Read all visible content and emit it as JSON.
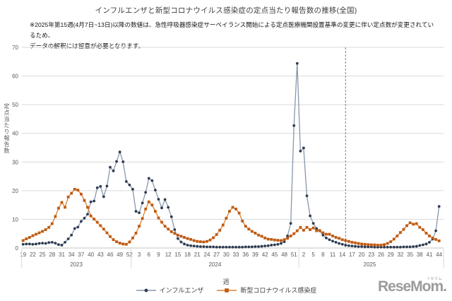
{
  "title": "インフルエンザと新型コロナウイルス感染症の定点当たり報告数の推移(全国)",
  "note": {
    "line1": "※2025年第15週(4月7日~13日)以降の数値は、急性呼吸器感染症サーベイランス開始による定点医療機関設置基準の変更に伴い定点数が変更されているため、",
    "line2": "データの解釈には留意が必要となります。"
  },
  "y_axis": {
    "label": "定点当たり報告数",
    "min": 0,
    "max": 70,
    "ticks": [
      0,
      10,
      20,
      30,
      40,
      50,
      60,
      70
    ]
  },
  "x_axis": {
    "title": "週",
    "label_every": 3,
    "years": [
      {
        "label": "2023",
        "start_week": 19,
        "num_weeks": 34
      },
      {
        "label": "2024",
        "start_week": 1,
        "num_weeks": 52
      },
      {
        "label": "2025",
        "start_week": 1,
        "num_weeks": 44
      }
    ]
  },
  "annotation": {
    "type": "dashed-vertical-line",
    "at_year": "2025",
    "at_week": 15,
    "week_index": 100
  },
  "legend": [
    {
      "label": "インフルエンザ",
      "marker": "circle",
      "line_color": "#8897AC",
      "marker_color": "#2E3B50"
    },
    {
      "label": "新型コロナウイルス感染症",
      "marker": "square",
      "line_color": "#E0802F",
      "marker_color": "#BE5A14"
    }
  ],
  "watermark": {
    "text": "ReseMom.",
    "ruby": "リセマム",
    "color": "#9b9b9b"
  },
  "chart_data": {
    "type": "line",
    "title": "インフルエンザと新型コロナウイルス感染症の定点当たり報告数の推移(全国)",
    "xlabel": "週",
    "ylabel": "定点当たり報告数",
    "ylim": [
      0,
      70
    ],
    "grid": true,
    "legend_position": "bottom",
    "x_weeks": [
      19,
      20,
      21,
      22,
      23,
      24,
      25,
      26,
      27,
      28,
      29,
      30,
      31,
      32,
      33,
      34,
      35,
      36,
      37,
      38,
      39,
      40,
      41,
      42,
      43,
      44,
      45,
      46,
      47,
      48,
      49,
      50,
      51,
      52,
      1,
      2,
      3,
      4,
      5,
      6,
      7,
      8,
      9,
      10,
      11,
      12,
      13,
      14,
      15,
      16,
      17,
      18,
      19,
      20,
      21,
      22,
      23,
      24,
      25,
      26,
      27,
      28,
      29,
      30,
      31,
      32,
      33,
      34,
      35,
      36,
      37,
      38,
      39,
      40,
      41,
      42,
      43,
      44,
      45,
      46,
      47,
      48,
      49,
      50,
      51,
      52,
      1,
      2,
      3,
      4,
      5,
      6,
      7,
      8,
      9,
      10,
      11,
      12,
      13,
      14,
      15,
      16,
      17,
      18,
      19,
      20,
      21,
      22,
      23,
      24,
      25,
      26,
      27,
      28,
      29,
      30,
      31,
      32,
      33,
      34,
      35,
      36,
      37,
      38,
      39,
      40,
      41,
      42,
      43,
      44
    ],
    "series": [
      {
        "name": "インフルエンザ",
        "values": [
          1.3,
          1.4,
          1.4,
          1.3,
          1.4,
          1.6,
          1.7,
          1.6,
          1.9,
          2.0,
          1.7,
          1.2,
          1.0,
          2.0,
          3.2,
          4.5,
          6.8,
          7.3,
          9.3,
          10.4,
          11.8,
          16.1,
          16.4,
          21.0,
          21.5,
          17.9,
          21.6,
          28.2,
          26.9,
          30.2,
          33.5,
          30.1,
          23.2,
          22.0,
          20.5,
          12.8,
          12.3,
          15.7,
          19.4,
          24.3,
          23.5,
          20.2,
          17.0,
          14.0,
          16.9,
          14.2,
          10.9,
          6.4,
          3.3,
          2.1,
          1.4,
          1.0,
          0.8,
          0.7,
          0.6,
          0.5,
          0.5,
          0.4,
          0.4,
          0.4,
          0.3,
          0.3,
          0.3,
          0.3,
          0.3,
          0.3,
          0.3,
          0.3,
          0.3,
          0.4,
          0.4,
          0.4,
          0.5,
          0.5,
          0.6,
          0.7,
          0.8,
          1.0,
          1.1,
          1.3,
          1.6,
          2.2,
          4.2,
          8.6,
          42.7,
          64.4,
          33.8,
          34.9,
          18.2,
          11.2,
          8.6,
          6.8,
          6.0,
          4.5,
          3.5,
          2.9,
          2.4,
          2.0,
          1.6,
          1.3,
          1.0,
          0.8,
          0.7,
          0.6,
          0.5,
          0.5,
          0.4,
          0.4,
          0.4,
          0.3,
          0.3,
          0.3,
          0.3,
          0.3,
          0.3,
          0.3,
          0.3,
          0.3,
          0.4,
          0.4,
          0.4,
          0.5,
          0.6,
          0.9,
          1.1,
          1.4,
          2.0,
          3.1,
          6.0,
          14.5
        ]
      },
      {
        "name": "新型コロナウイルス感染症",
        "values": [
          2.6,
          3.2,
          3.7,
          4.3,
          4.8,
          5.3,
          5.8,
          6.4,
          7.2,
          8.5,
          11.0,
          13.9,
          15.9,
          14.2,
          17.8,
          19.1,
          20.5,
          20.2,
          18.8,
          16.6,
          14.2,
          11.2,
          10.1,
          9.0,
          7.8,
          6.6,
          5.3,
          4.0,
          2.9,
          2.2,
          1.7,
          1.4,
          1.3,
          2.1,
          3.5,
          5.2,
          7.6,
          10.3,
          13.6,
          16.1,
          15.0,
          12.8,
          10.5,
          9.0,
          7.6,
          6.6,
          5.7,
          5.1,
          4.5,
          4.1,
          3.7,
          3.3,
          3.0,
          2.6,
          2.3,
          2.2,
          2.1,
          2.3,
          2.8,
          3.6,
          4.7,
          6.2,
          8.0,
          10.4,
          12.8,
          14.2,
          13.6,
          12.2,
          9.4,
          7.6,
          6.6,
          5.8,
          5.2,
          4.5,
          4.1,
          3.5,
          3.1,
          3.0,
          2.8,
          2.7,
          2.6,
          2.9,
          3.4,
          4.2,
          5.0,
          6.0,
          7.2,
          6.2,
          7.2,
          6.4,
          7.0,
          6.0,
          6.1,
          5.3,
          4.8,
          4.8,
          4.2,
          3.7,
          3.4,
          2.9,
          2.6,
          2.3,
          2.0,
          1.8,
          1.6,
          1.4,
          1.3,
          1.2,
          1.1,
          1.1,
          1.0,
          1.0,
          1.2,
          1.6,
          2.2,
          3.1,
          4.2,
          5.4,
          6.5,
          7.8,
          8.8,
          8.3,
          8.5,
          7.2,
          6.4,
          5.2,
          4.2,
          3.5,
          3.0,
          2.5
        ]
      }
    ]
  }
}
